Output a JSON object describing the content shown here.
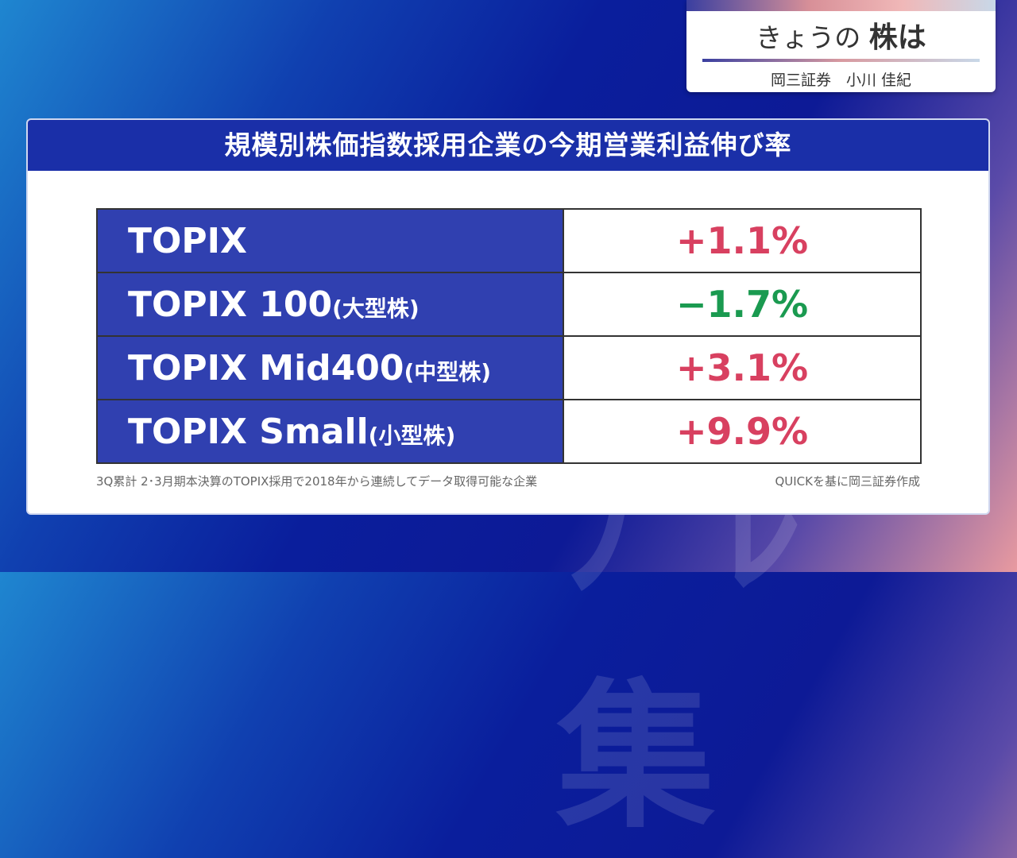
{
  "header": {
    "title_prefix": "きょうの",
    "title_main": "株は",
    "presenter": "岡三証券　小川 佳紀"
  },
  "panel": {
    "title": "規模別株価指数採用企業の今期営業利益伸び率"
  },
  "rows": [
    {
      "name": "TOPIX",
      "suffix": "",
      "value": "+1.1%",
      "color": "#d84060"
    },
    {
      "name": "TOPIX 100",
      "suffix": "(大型株)",
      "value": "−1.7%",
      "color": "#1a9a50"
    },
    {
      "name": "TOPIX Mid400",
      "suffix": "(中型株)",
      "value": "+3.1%",
      "color": "#d84060"
    },
    {
      "name": "TOPIX Small",
      "suffix": "(小型株)",
      "value": "+9.9%",
      "color": "#d84060"
    }
  ],
  "footnote": "3Q累計 2･3月期本決算のTOPIX採用で2018年から連続してデータ取得可能な企業",
  "source": "QUICKを基に岡三証券作成"
}
